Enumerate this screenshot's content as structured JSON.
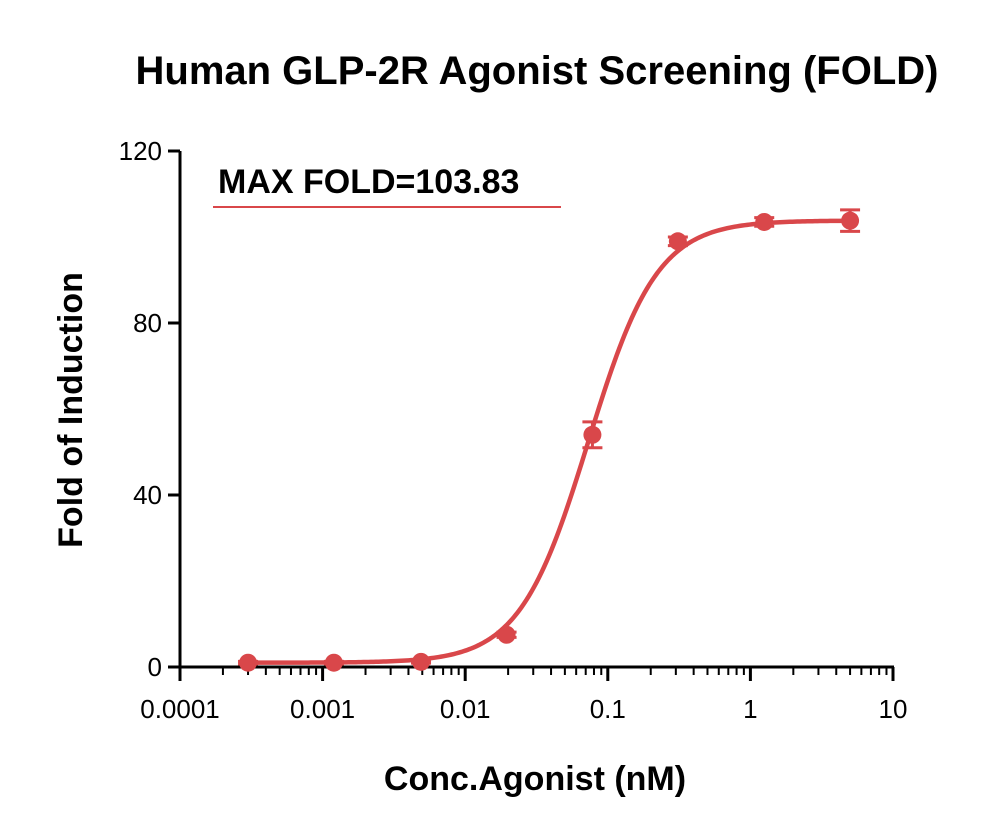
{
  "chart_data": {
    "type": "scatter",
    "title": "Human GLP-2R Agonist Screening (FOLD)",
    "xlabel": "Conc.Agonist (nM)",
    "ylabel": "Fold of Induction",
    "x_scale": "log",
    "xlim": [
      0.0001,
      10
    ],
    "ylim": [
      0,
      120
    ],
    "x_ticks": [
      0.0001,
      0.001,
      0.01,
      0.1,
      1,
      10
    ],
    "x_tick_labels": [
      "0.0001",
      "0.001",
      "0.01",
      "0.1",
      "1",
      "10"
    ],
    "y_ticks": [
      0,
      40,
      80,
      120
    ],
    "y_tick_labels": [
      "0",
      "40",
      "80",
      "120"
    ],
    "grid": false,
    "annotation": "MAX FOLD=103.83",
    "series": [
      {
        "color": "#d9474a",
        "points": [
          {
            "x": 0.0003,
            "y": 1.0,
            "err": 0.3
          },
          {
            "x": 0.0012,
            "y": 1.0,
            "err": 0.3
          },
          {
            "x": 0.0049,
            "y": 1.2,
            "err": 0.3
          },
          {
            "x": 0.0195,
            "y": 7.5,
            "err": 0.6
          },
          {
            "x": 0.078,
            "y": 54.0,
            "err": 3.0
          },
          {
            "x": 0.31,
            "y": 99.0,
            "err": 1.0
          },
          {
            "x": 1.25,
            "y": 103.5,
            "err": 1.0
          },
          {
            "x": 5.0,
            "y": 103.8,
            "err": 2.5
          }
        ],
        "fit": {
          "bottom": 1.0,
          "top": 103.83,
          "ec50": 0.073,
          "hill": 1.8
        }
      }
    ]
  }
}
